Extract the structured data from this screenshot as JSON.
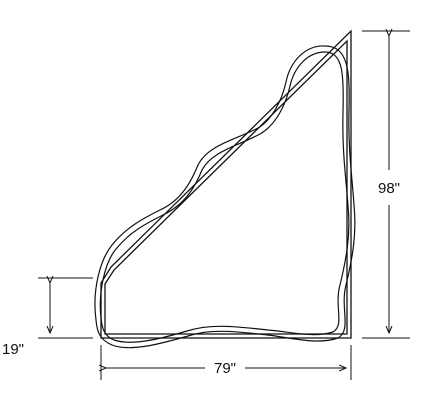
{
  "dimensions": {
    "height": "98\"",
    "width": "79\"",
    "short_side": "19\""
  },
  "colors": {
    "line": "#111111",
    "background": "#ffffff"
  }
}
